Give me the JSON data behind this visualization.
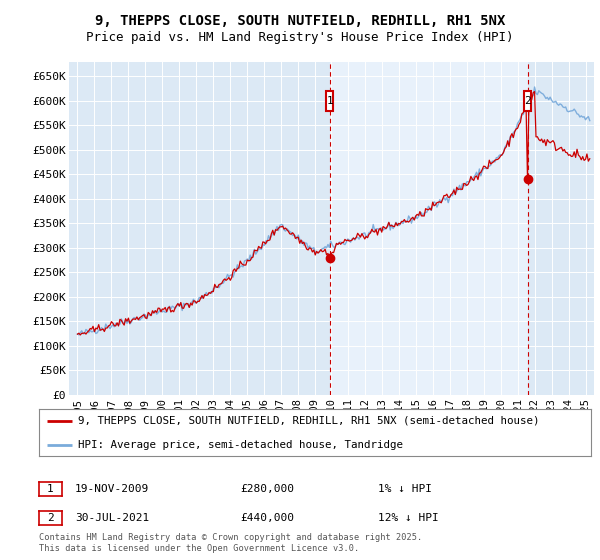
{
  "title_line1": "9, THEPPS CLOSE, SOUTH NUTFIELD, REDHILL, RH1 5NX",
  "title_line2": "Price paid vs. HM Land Registry's House Price Index (HPI)",
  "xlim": [
    1994.5,
    2025.5
  ],
  "ylim": [
    0,
    680000
  ],
  "yticks": [
    0,
    50000,
    100000,
    150000,
    200000,
    250000,
    300000,
    350000,
    400000,
    450000,
    500000,
    550000,
    600000,
    650000
  ],
  "ytick_labels": [
    "£0",
    "£50K",
    "£100K",
    "£150K",
    "£200K",
    "£250K",
    "£300K",
    "£350K",
    "£400K",
    "£450K",
    "£500K",
    "£550K",
    "£600K",
    "£650K"
  ],
  "xticks": [
    1995,
    1996,
    1997,
    1998,
    1999,
    2000,
    2001,
    2002,
    2003,
    2004,
    2005,
    2006,
    2007,
    2008,
    2009,
    2010,
    2011,
    2012,
    2013,
    2014,
    2015,
    2016,
    2017,
    2018,
    2019,
    2020,
    2021,
    2022,
    2023,
    2024,
    2025
  ],
  "background_color": "#dce9f5",
  "highlight_color": "#e8f1fb",
  "grid_color": "#ffffff",
  "red_line_color": "#cc0000",
  "blue_line_color": "#7aabdb",
  "vline_color": "#cc0000",
  "marker1_x": 2009.9,
  "marker1_y": 280000,
  "marker2_x": 2021.58,
  "marker2_y": 440000,
  "legend_red_label": "9, THEPPS CLOSE, SOUTH NUTFIELD, REDHILL, RH1 5NX (semi-detached house)",
  "legend_blue_label": "HPI: Average price, semi-detached house, Tandridge",
  "footer": "Contains HM Land Registry data © Crown copyright and database right 2025.\nThis data is licensed under the Open Government Licence v3.0."
}
